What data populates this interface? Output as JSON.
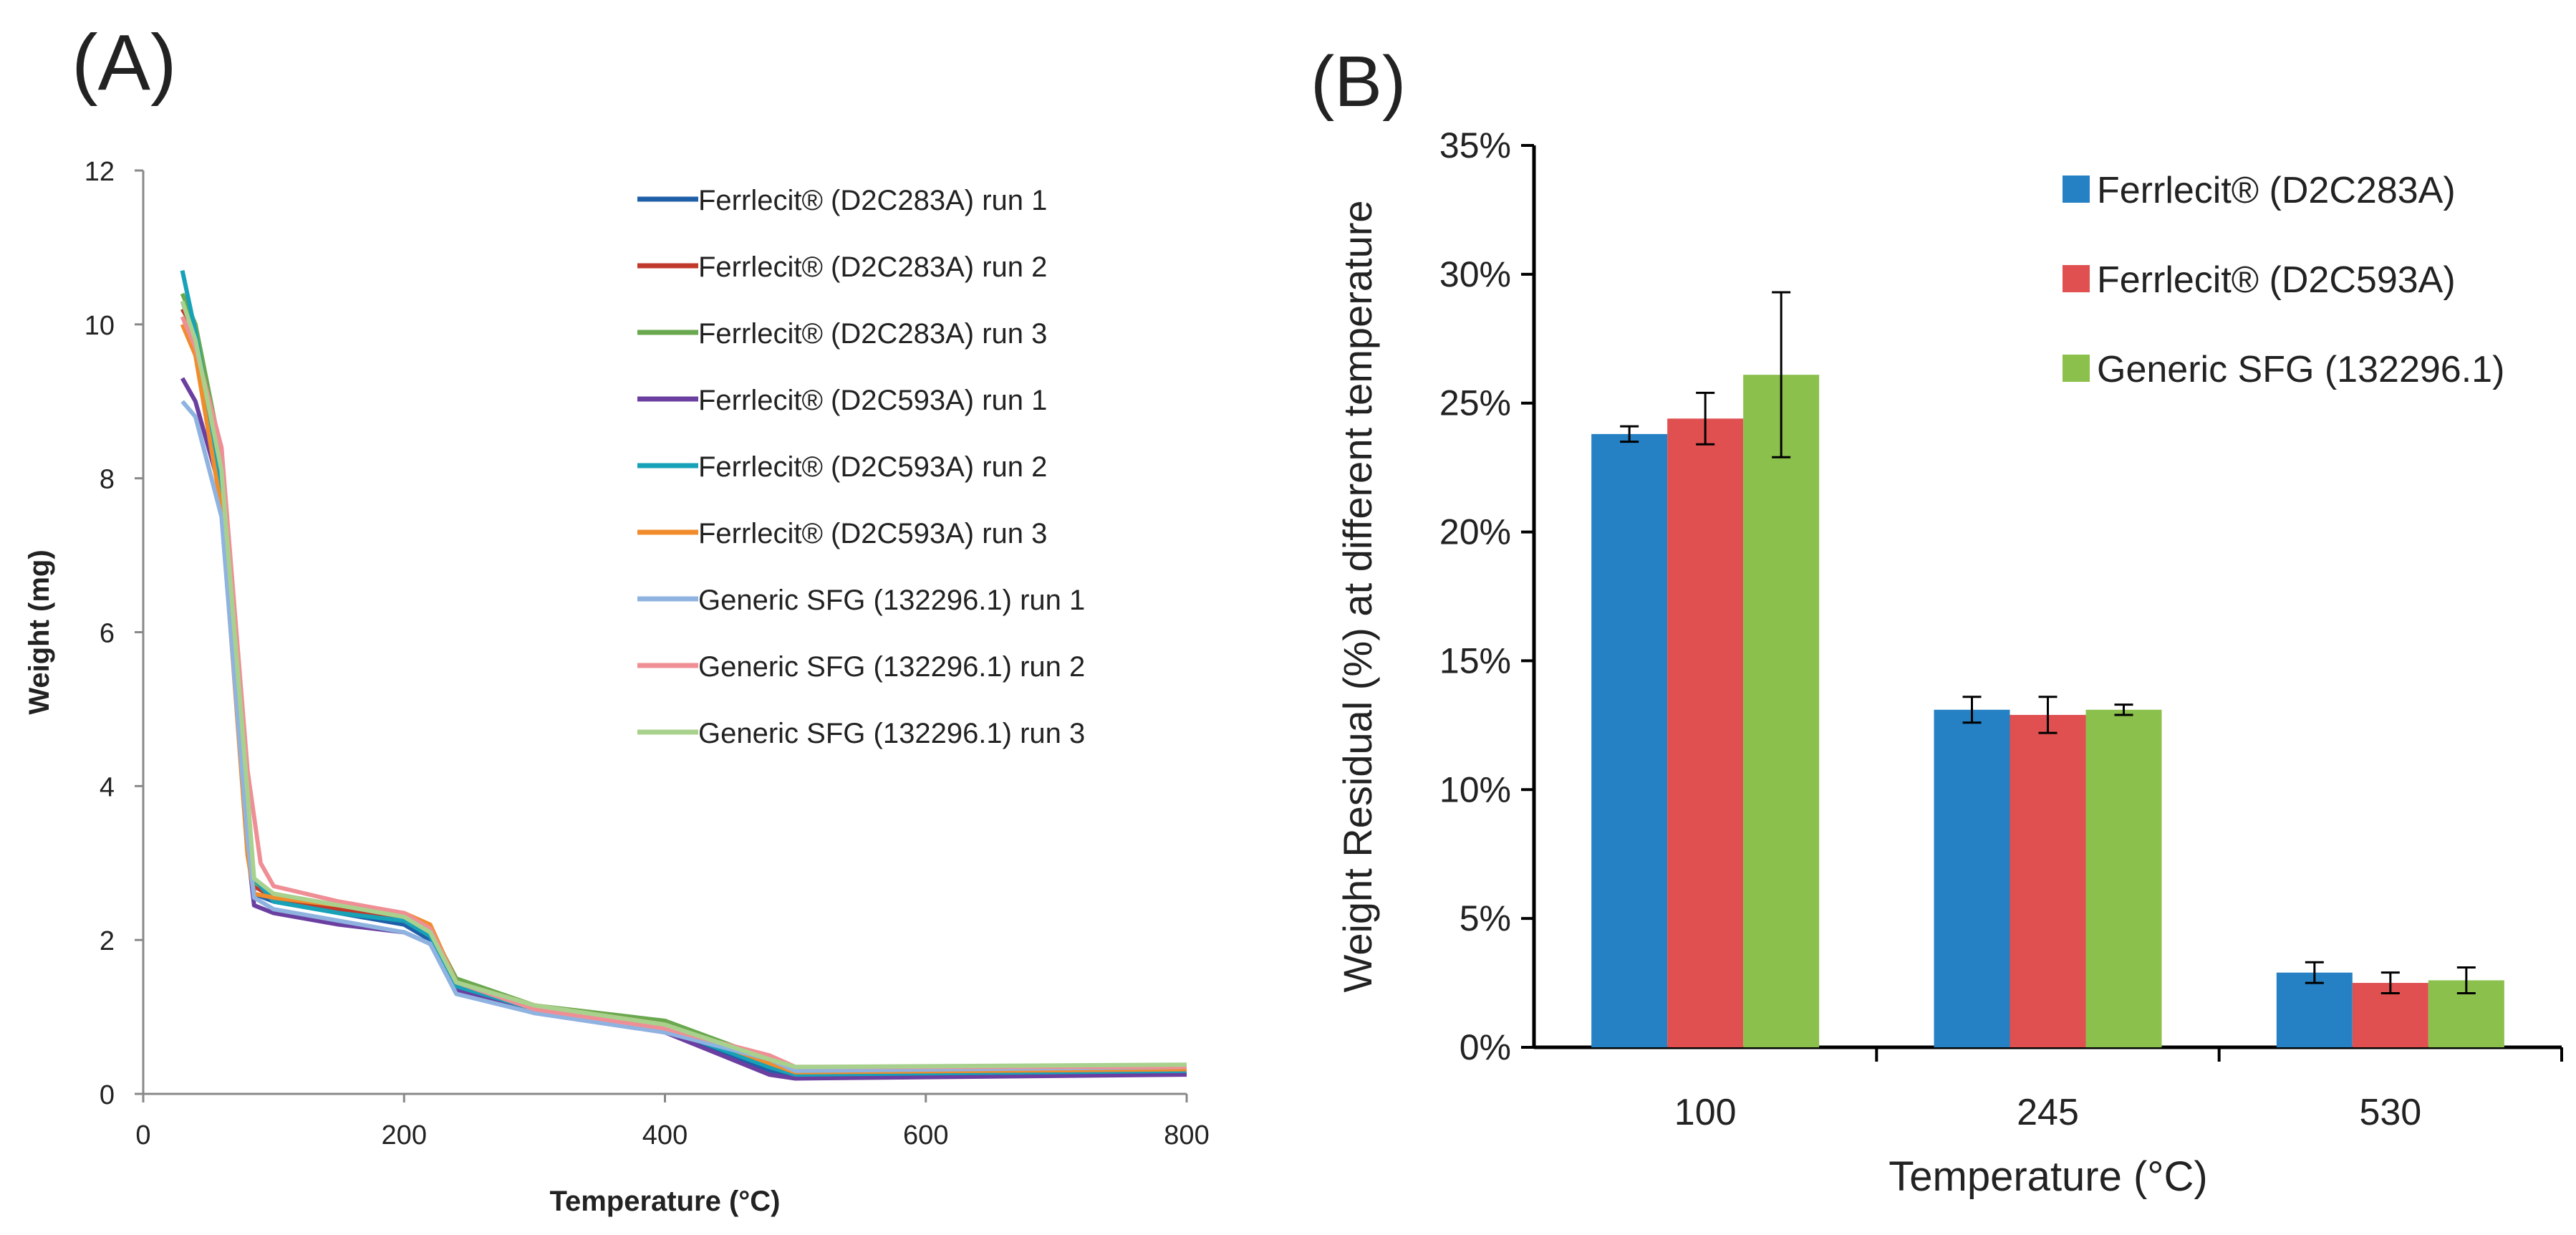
{
  "panel_a_label": "(A)",
  "panel_b_label": "(B)",
  "colors": {
    "Ferrlecit® (D2C283A) run 1": "#1f5fa8",
    "Ferrlecit® (D2C283A) run 2": "#c0392b",
    "Ferrlecit® (D2C283A) run 3": "#6aa84f",
    "Ferrlecit® (D2C593A) run 1": "#6b3fa0",
    "Ferrlecit® (D2C593A) run 2": "#17a2b8",
    "Ferrlecit® (D2C593A) run 3": "#f08c2b",
    "Generic SFG (132296.1) run 1": "#8fb3e0",
    "Generic SFG (132296.1) run 2": "#ef8f95",
    "Generic SFG (132296.1) run 3": "#a9d18e",
    "bar_ferrlecit_283": "#2581c4",
    "bar_ferrlecit_593": "#e05050",
    "bar_generic": "#8bc04c"
  },
  "chart_data": [
    {
      "type": "line",
      "xlabel": "Temperature (°C)",
      "ylabel": "Weight (mg)",
      "xlim": [
        0,
        800
      ],
      "ylim": [
        0,
        12
      ],
      "xticks": [
        "0",
        "200",
        "400",
        "600",
        "800"
      ],
      "yticks": [
        "0",
        "2",
        "4",
        "6",
        "8",
        "10",
        "12"
      ],
      "grid": false,
      "legend_position": "top-right",
      "series": [
        {
          "name": "Ferrlecit® (D2C283A) run 1",
          "x": [
            30,
            40,
            60,
            80,
            85,
            100,
            150,
            200,
            220,
            240,
            300,
            400,
            480,
            500,
            800
          ],
          "y": [
            10.3,
            9.8,
            8.0,
            3.5,
            2.6,
            2.5,
            2.35,
            2.2,
            2.0,
            1.4,
            1.1,
            0.85,
            0.3,
            0.22,
            0.28
          ]
        },
        {
          "name": "Ferrlecit® (D2C283A) run 2",
          "x": [
            30,
            40,
            60,
            80,
            85,
            100,
            150,
            200,
            220,
            240,
            300,
            400,
            480,
            500,
            800
          ],
          "y": [
            10.2,
            9.9,
            8.2,
            3.6,
            2.7,
            2.55,
            2.4,
            2.3,
            2.1,
            1.45,
            1.15,
            0.9,
            0.35,
            0.25,
            0.3
          ]
        },
        {
          "name": "Ferrlecit® (D2C283A) run 3",
          "x": [
            30,
            40,
            60,
            80,
            85,
            100,
            150,
            200,
            220,
            240,
            300,
            400,
            480,
            500,
            800
          ],
          "y": [
            10.4,
            10.0,
            8.3,
            3.7,
            2.75,
            2.6,
            2.45,
            2.35,
            2.15,
            1.5,
            1.15,
            0.95,
            0.45,
            0.3,
            0.35
          ]
        },
        {
          "name": "Ferrlecit® (D2C593A) run 1",
          "x": [
            30,
            40,
            60,
            80,
            85,
            100,
            150,
            200,
            220,
            240,
            300,
            400,
            480,
            500,
            800
          ],
          "y": [
            9.3,
            9.0,
            7.8,
            3.2,
            2.45,
            2.35,
            2.2,
            2.1,
            1.95,
            1.35,
            1.05,
            0.8,
            0.25,
            0.2,
            0.25
          ]
        },
        {
          "name": "Ferrlecit® (D2C593A) run 2",
          "x": [
            30,
            40,
            60,
            80,
            85,
            100,
            150,
            200,
            220,
            240,
            300,
            400,
            480,
            500,
            800
          ],
          "y": [
            10.7,
            9.9,
            7.9,
            3.4,
            2.8,
            2.5,
            2.35,
            2.25,
            2.05,
            1.4,
            1.1,
            0.85,
            0.35,
            0.25,
            0.3
          ]
        },
        {
          "name": "Ferrlecit® (D2C593A) run 3",
          "x": [
            30,
            40,
            60,
            80,
            85,
            100,
            150,
            200,
            220,
            240,
            300,
            400,
            480,
            500,
            800
          ],
          "y": [
            10.0,
            9.6,
            7.6,
            3.1,
            2.6,
            2.55,
            2.45,
            2.35,
            2.2,
            1.45,
            1.15,
            0.9,
            0.4,
            0.28,
            0.32
          ]
        },
        {
          "name": "Generic SFG (132296.1) run 1",
          "x": [
            30,
            40,
            60,
            80,
            85,
            100,
            150,
            200,
            220,
            240,
            300,
            400,
            480,
            500,
            800
          ],
          "y": [
            9.0,
            8.8,
            7.5,
            3.3,
            2.55,
            2.4,
            2.25,
            2.1,
            1.95,
            1.3,
            1.05,
            0.8,
            0.45,
            0.3,
            0.35
          ]
        },
        {
          "name": "Generic SFG (132296.1) run 2",
          "x": [
            30,
            40,
            60,
            80,
            90,
            100,
            150,
            200,
            220,
            240,
            300,
            400,
            480,
            500,
            800
          ],
          "y": [
            10.1,
            9.7,
            8.4,
            4.2,
            3.0,
            2.7,
            2.5,
            2.35,
            2.15,
            1.45,
            1.1,
            0.85,
            0.5,
            0.35,
            0.35
          ]
        },
        {
          "name": "Generic SFG (132296.1) run 3",
          "x": [
            30,
            40,
            60,
            80,
            85,
            100,
            150,
            200,
            220,
            240,
            300,
            400,
            480,
            500,
            800
          ],
          "y": [
            10.3,
            9.8,
            8.1,
            3.9,
            2.8,
            2.6,
            2.45,
            2.3,
            2.1,
            1.45,
            1.15,
            0.9,
            0.45,
            0.35,
            0.38
          ]
        }
      ]
    },
    {
      "type": "bar",
      "xlabel": "Temperature (°C)",
      "ylabel": "Weight Residual (%) at different temperature",
      "ylim": [
        0,
        35
      ],
      "yticks": [
        "0%",
        "5%",
        "10%",
        "15%",
        "20%",
        "25%",
        "30%",
        "35%"
      ],
      "grid": false,
      "legend_position": "top-right",
      "categories": [
        "100",
        "245",
        "530"
      ],
      "series": [
        {
          "name": "Ferrlecit® (D2C283A)",
          "values": [
            23.8,
            13.1,
            2.9
          ],
          "errors": [
            0.3,
            0.5,
            0.4
          ]
        },
        {
          "name": "Ferrlecit® (D2C593A)",
          "values": [
            24.4,
            12.9,
            2.5
          ],
          "errors": [
            1.0,
            0.7,
            0.4
          ]
        },
        {
          "name": "Generic SFG (132296.1)",
          "values": [
            26.1,
            13.1,
            2.6
          ],
          "errors": [
            3.2,
            0.2,
            0.5
          ]
        }
      ]
    }
  ]
}
